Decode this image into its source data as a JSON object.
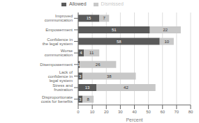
{
  "chart_data": {
    "type": "bar",
    "orientation": "horizontal",
    "stacked": true,
    "data_labels": true,
    "categories": [
      "Disproportionate costs for benefits",
      "Stress and frustration",
      "Lack of confidence in legal system",
      "Disempowerment",
      "Worse communication",
      "Confidence in the legal system",
      "Empowerment",
      "Improved communication"
    ],
    "series": [
      {
        "name": "Allowed",
        "color": "#5a5a5a",
        "values": [
          3,
          13,
          3,
          1,
          4,
          58,
          51,
          15
        ]
      },
      {
        "name": "Dismissed",
        "color": "#c8c8c8",
        "values": [
          8,
          42,
          38,
          26,
          11,
          10,
          22,
          7
        ]
      }
    ],
    "xlabel": "Percent",
    "xlim": [
      0,
      80
    ],
    "xticks": [
      0,
      10,
      20,
      30,
      40,
      50,
      60,
      70,
      80
    ],
    "grid": true,
    "legend": "top"
  }
}
